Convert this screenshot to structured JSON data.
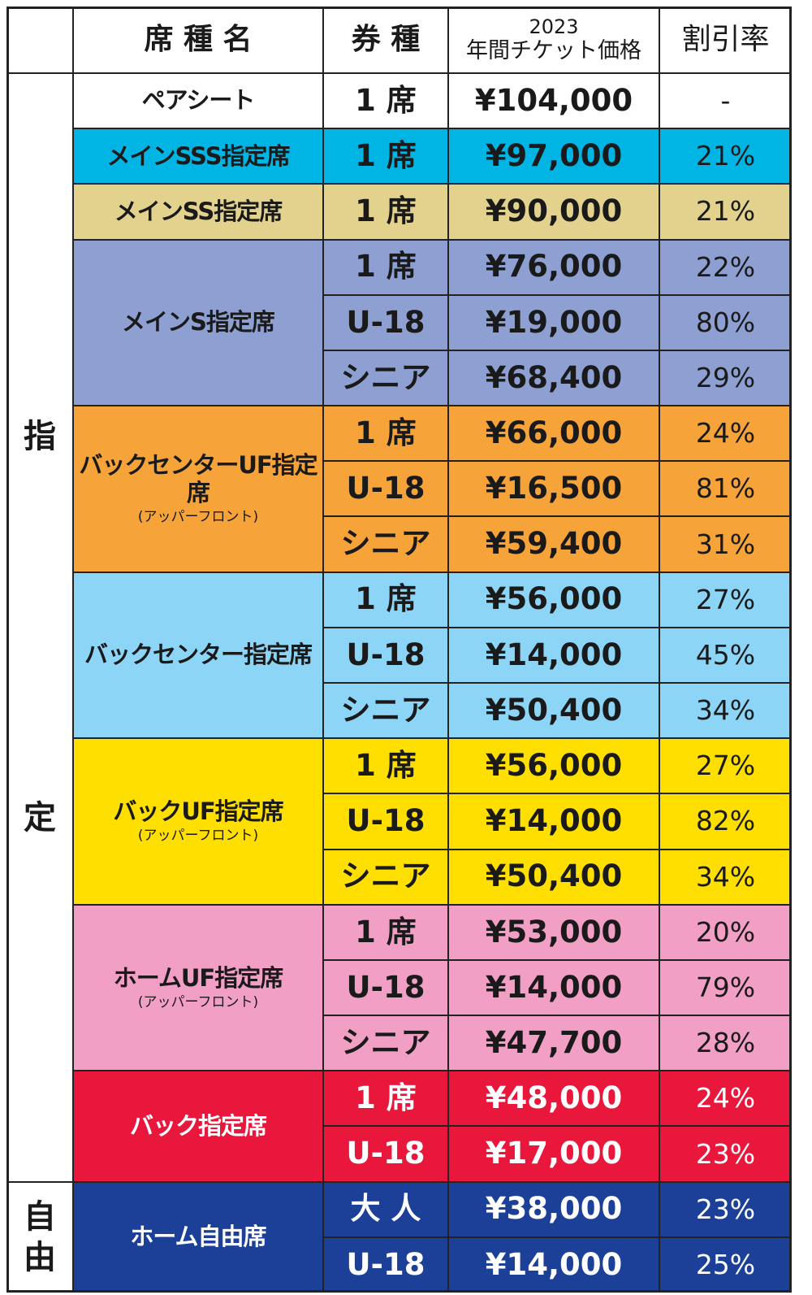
{
  "table": {
    "header": {
      "seat": "席 種 名",
      "ticket": "券 種",
      "year": "2023",
      "price": "年間チケット価格",
      "discount": "割引率"
    },
    "groups": [
      {
        "chars": [
          "指",
          "定"
        ],
        "seats": [
          {
            "name": "ペアシート",
            "color": "#ffffff",
            "text_color": "#1a1a1a",
            "rows": [
              {
                "type": "1 席",
                "price": "¥104,000",
                "discount": "-"
              }
            ]
          },
          {
            "name": "メインSSS指定席",
            "color": "#00b4e4",
            "text_color": "#1a1a1a",
            "rows": [
              {
                "type": "1 席",
                "price": "¥97,000",
                "discount": "21%"
              }
            ]
          },
          {
            "name": "メインSS指定席",
            "color": "#e2d28e",
            "text_color": "#1a1a1a",
            "rows": [
              {
                "type": "1 席",
                "price": "¥90,000",
                "discount": "21%"
              }
            ]
          },
          {
            "name": "メインS指定席",
            "color": "#8e9fd2",
            "text_color": "#1a1a1a",
            "rows": [
              {
                "type": "1 席",
                "price": "¥76,000",
                "discount": "22%"
              },
              {
                "type": "U-18",
                "price": "¥19,000",
                "discount": "80%"
              },
              {
                "type": "シニア",
                "price": "¥68,400",
                "discount": "29%"
              }
            ]
          },
          {
            "name": "バックセンターUF指定席",
            "sub": "(アッパーフロント)",
            "color": "#f6a43a",
            "text_color": "#1a1a1a",
            "rows": [
              {
                "type": "1 席",
                "price": "¥66,000",
                "discount": "24%"
              },
              {
                "type": "U-18",
                "price": "¥16,500",
                "discount": "81%"
              },
              {
                "type": "シニア",
                "price": "¥59,400",
                "discount": "31%"
              }
            ]
          },
          {
            "name": "バックセンター指定席",
            "color": "#8dd5f6",
            "text_color": "#1a1a1a",
            "rows": [
              {
                "type": "1 席",
                "price": "¥56,000",
                "discount": "27%"
              },
              {
                "type": "U-18",
                "price": "¥14,000",
                "discount": "45%"
              },
              {
                "type": "シニア",
                "price": "¥50,400",
                "discount": "34%"
              }
            ]
          },
          {
            "name": "バックUF指定席",
            "sub": "(アッパーフロント)",
            "color": "#ffdf00",
            "text_color": "#1a1a1a",
            "rows": [
              {
                "type": "1 席",
                "price": "¥56,000",
                "discount": "27%"
              },
              {
                "type": "U-18",
                "price": "¥14,000",
                "discount": "82%"
              },
              {
                "type": "シニア",
                "price": "¥50,400",
                "discount": "34%"
              }
            ]
          },
          {
            "name": "ホームUF指定席",
            "sub": "(アッパーフロント)",
            "color": "#f29fc5",
            "text_color": "#1a1a1a",
            "rows": [
              {
                "type": "1 席",
                "price": "¥53,000",
                "discount": "20%"
              },
              {
                "type": "U-18",
                "price": "¥14,000",
                "discount": "79%"
              },
              {
                "type": "シニア",
                "price": "¥47,700",
                "discount": "28%"
              }
            ]
          },
          {
            "name": "バック指定席",
            "color": "#e8173b",
            "text_color": "#ffffff",
            "rows": [
              {
                "type": "1 席",
                "price": "¥48,000",
                "discount": "24%"
              },
              {
                "type": "U-18",
                "price": "¥17,000",
                "discount": "23%"
              }
            ]
          }
        ]
      },
      {
        "chars": [
          "自",
          "由"
        ],
        "seats": [
          {
            "name": "ホーム自由席",
            "color": "#1c3f98",
            "text_color": "#ffffff",
            "rows": [
              {
                "type": "大 人",
                "price": "¥38,000",
                "discount": "23%"
              },
              {
                "type": "U-18",
                "price": "¥14,000",
                "discount": "25%"
              }
            ]
          }
        ]
      }
    ]
  }
}
